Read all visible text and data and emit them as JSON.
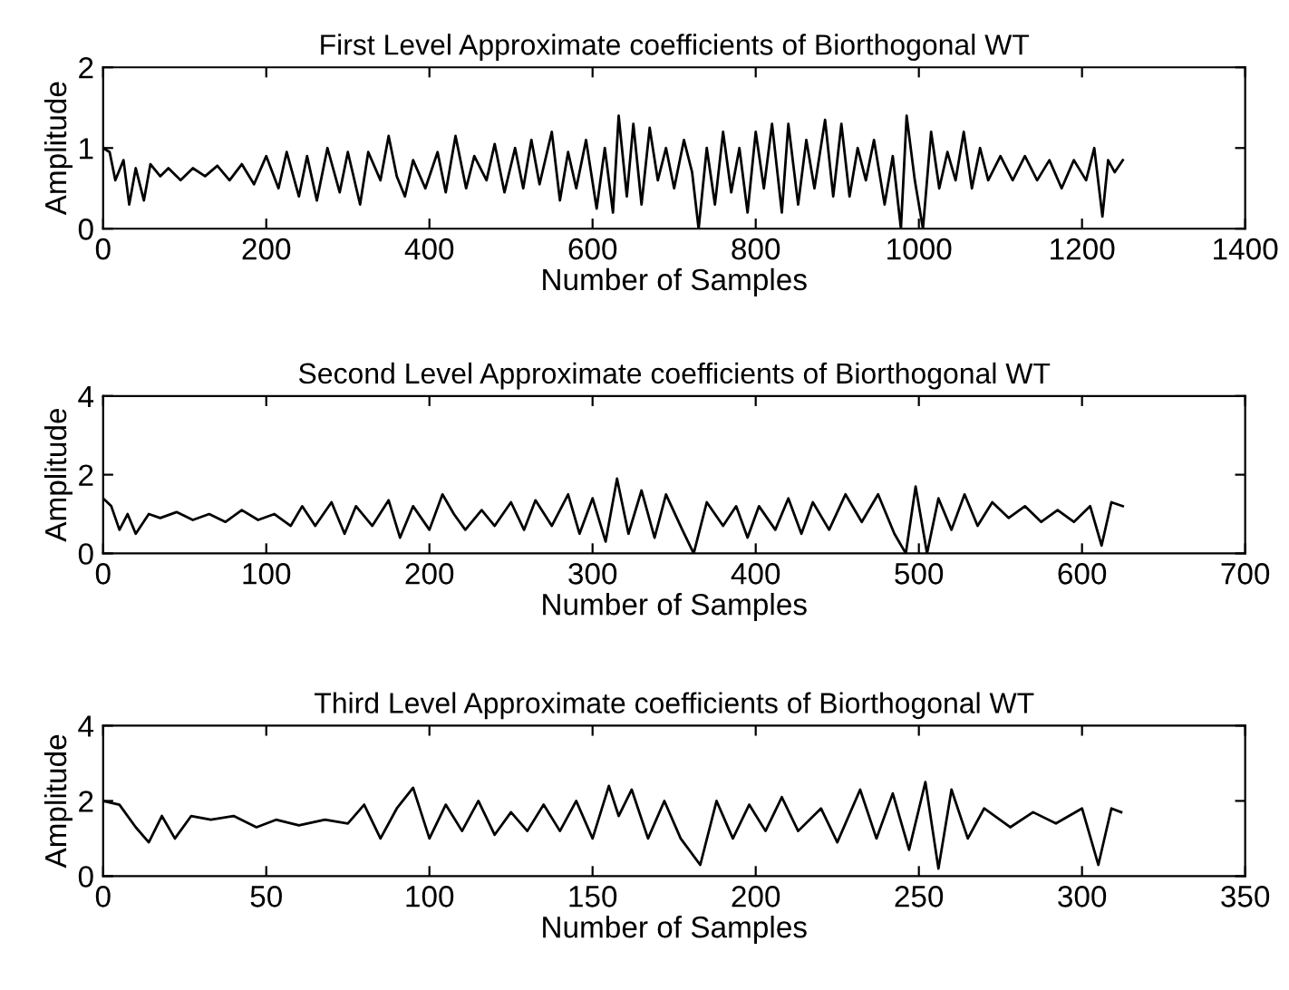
{
  "chart_data": [
    {
      "type": "line",
      "title": "First Level Approximate coefficients of Biorthogonal WT",
      "xlabel": "Number of Samples",
      "ylabel": "Amplitude",
      "xlim": [
        0,
        1400
      ],
      "xticks": [
        0,
        200,
        400,
        600,
        800,
        1000,
        1200,
        1400
      ],
      "ylim": [
        0,
        2
      ],
      "yticks": [
        0,
        1,
        2
      ],
      "grid": false,
      "legend": false,
      "series": [
        {
          "color": "#000000",
          "x": [
            0,
            8,
            15,
            25,
            32,
            40,
            50,
            58,
            70,
            80,
            95,
            110,
            125,
            140,
            155,
            170,
            185,
            200,
            215,
            225,
            240,
            250,
            262,
            275,
            290,
            300,
            315,
            325,
            340,
            350,
            360,
            370,
            380,
            395,
            410,
            420,
            432,
            445,
            455,
            470,
            480,
            492,
            505,
            515,
            525,
            535,
            550,
            560,
            570,
            580,
            592,
            605,
            615,
            625,
            632,
            642,
            650,
            660,
            670,
            680,
            690,
            700,
            712,
            722,
            730,
            740,
            750,
            760,
            770,
            780,
            790,
            800,
            810,
            820,
            832,
            840,
            852,
            862,
            872,
            885,
            895,
            905,
            915,
            925,
            935,
            945,
            958,
            968,
            978,
            985,
            995,
            1005,
            1015,
            1025,
            1035,
            1045,
            1055,
            1065,
            1075,
            1085,
            1100,
            1115,
            1130,
            1145,
            1160,
            1175,
            1190,
            1205,
            1215,
            1225,
            1232,
            1240,
            1250
          ],
          "values": [
            1.0,
            0.95,
            0.6,
            0.85,
            0.3,
            0.75,
            0.35,
            0.8,
            0.65,
            0.75,
            0.6,
            0.75,
            0.65,
            0.78,
            0.6,
            0.8,
            0.55,
            0.9,
            0.5,
            0.95,
            0.4,
            0.9,
            0.35,
            1.0,
            0.45,
            0.95,
            0.3,
            0.95,
            0.6,
            1.15,
            0.65,
            0.4,
            0.85,
            0.5,
            0.95,
            0.45,
            1.15,
            0.5,
            0.9,
            0.6,
            1.05,
            0.45,
            1.0,
            0.5,
            1.1,
            0.55,
            1.2,
            0.35,
            0.95,
            0.5,
            1.1,
            0.25,
            1.0,
            0.2,
            1.4,
            0.4,
            1.3,
            0.3,
            1.25,
            0.6,
            1.0,
            0.5,
            1.1,
            0.7,
            0.0,
            1.0,
            0.3,
            1.2,
            0.45,
            1.0,
            0.2,
            1.2,
            0.5,
            1.3,
            0.2,
            1.3,
            0.3,
            1.1,
            0.5,
            1.35,
            0.4,
            1.3,
            0.4,
            1.0,
            0.6,
            1.1,
            0.3,
            0.9,
            0.0,
            1.4,
            0.6,
            0.0,
            1.2,
            0.5,
            0.95,
            0.6,
            1.2,
            0.5,
            1.0,
            0.6,
            0.9,
            0.6,
            0.9,
            0.6,
            0.85,
            0.5,
            0.85,
            0.6,
            1.0,
            0.15,
            0.85,
            0.7,
            0.85
          ]
        }
      ]
    },
    {
      "type": "line",
      "title": "Second Level Approximate coefficients of Biorthogonal WT",
      "xlabel": "Number of Samples",
      "ylabel": "Amplitude",
      "xlim": [
        0,
        700
      ],
      "xticks": [
        0,
        100,
        200,
        300,
        400,
        500,
        600,
        700
      ],
      "ylim": [
        0,
        4
      ],
      "yticks": [
        0,
        2,
        4
      ],
      "grid": false,
      "legend": false,
      "series": [
        {
          "color": "#000000",
          "x": [
            0,
            5,
            10,
            15,
            20,
            28,
            35,
            45,
            55,
            65,
            75,
            85,
            95,
            105,
            115,
            122,
            130,
            140,
            148,
            155,
            165,
            175,
            182,
            190,
            200,
            208,
            215,
            222,
            232,
            240,
            250,
            258,
            265,
            275,
            285,
            292,
            300,
            308,
            315,
            322,
            330,
            338,
            345,
            355,
            362,
            370,
            380,
            388,
            395,
            402,
            412,
            420,
            428,
            435,
            445,
            455,
            465,
            475,
            485,
            492,
            498,
            505,
            512,
            520,
            528,
            536,
            545,
            555,
            565,
            575,
            585,
            595,
            605,
            612,
            618,
            625
          ],
          "values": [
            1.4,
            1.2,
            0.6,
            1.0,
            0.5,
            1.0,
            0.9,
            1.05,
            0.85,
            1.0,
            0.8,
            1.1,
            0.85,
            1.0,
            0.7,
            1.2,
            0.7,
            1.3,
            0.5,
            1.2,
            0.7,
            1.35,
            0.4,
            1.2,
            0.6,
            1.5,
            1.0,
            0.6,
            1.1,
            0.7,
            1.3,
            0.6,
            1.35,
            0.7,
            1.5,
            0.5,
            1.4,
            0.3,
            1.9,
            0.5,
            1.6,
            0.4,
            1.5,
            0.6,
            0.0,
            1.3,
            0.7,
            1.2,
            0.4,
            1.2,
            0.6,
            1.4,
            0.5,
            1.3,
            0.6,
            1.5,
            0.8,
            1.5,
            0.5,
            0.0,
            1.7,
            0.0,
            1.4,
            0.6,
            1.5,
            0.7,
            1.3,
            0.9,
            1.2,
            0.8,
            1.1,
            0.8,
            1.2,
            0.2,
            1.3,
            1.2
          ]
        }
      ]
    },
    {
      "type": "line",
      "title": "Third Level Approximate coefficients of Biorthogonal WT",
      "xlabel": "Number of Samples",
      "ylabel": "Amplitude",
      "xlim": [
        0,
        350
      ],
      "xticks": [
        0,
        50,
        100,
        150,
        200,
        250,
        300,
        350
      ],
      "ylim": [
        0,
        4
      ],
      "yticks": [
        0,
        2,
        4
      ],
      "grid": false,
      "legend": false,
      "series": [
        {
          "color": "#000000",
          "x": [
            0,
            5,
            10,
            14,
            18,
            22,
            27,
            33,
            40,
            47,
            53,
            60,
            68,
            75,
            80,
            85,
            90,
            95,
            100,
            105,
            110,
            115,
            120,
            125,
            130,
            135,
            140,
            145,
            150,
            155,
            158,
            162,
            167,
            172,
            177,
            183,
            188,
            193,
            198,
            203,
            208,
            213,
            220,
            225,
            232,
            237,
            242,
            247,
            252,
            256,
            260,
            265,
            270,
            278,
            285,
            292,
            300,
            305,
            309,
            312
          ],
          "values": [
            2.0,
            1.9,
            1.3,
            0.9,
            1.6,
            1.0,
            1.6,
            1.5,
            1.6,
            1.3,
            1.5,
            1.35,
            1.5,
            1.4,
            1.9,
            1.0,
            1.8,
            2.35,
            1.0,
            1.9,
            1.2,
            2.0,
            1.1,
            1.7,
            1.2,
            1.9,
            1.2,
            2.0,
            1.0,
            2.4,
            1.6,
            2.3,
            1.0,
            2.0,
            1.0,
            0.3,
            2.0,
            1.0,
            1.9,
            1.2,
            2.1,
            1.2,
            1.8,
            0.9,
            2.3,
            1.0,
            2.2,
            0.7,
            2.5,
            0.2,
            2.3,
            1.0,
            1.8,
            1.3,
            1.7,
            1.4,
            1.8,
            0.3,
            1.8,
            1.7
          ]
        }
      ]
    }
  ]
}
